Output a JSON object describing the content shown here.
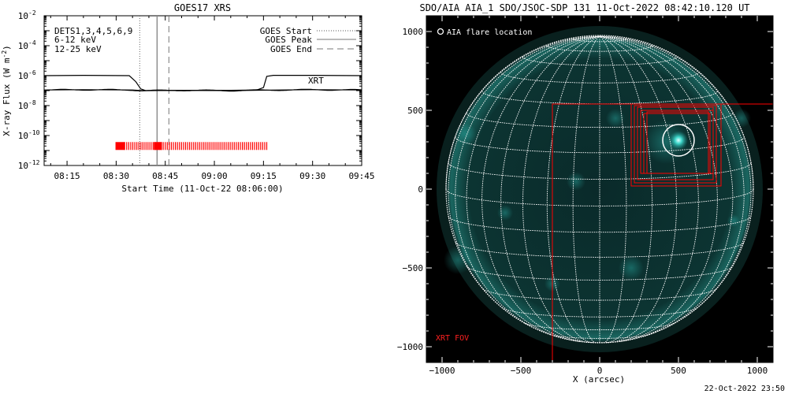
{
  "chart_data": [
    {
      "type": "line",
      "title": "GOES17 XRS",
      "xlabel": "Start Time (11-Oct-22 08:06:00)",
      "ylabel": "X-ray Flux (W m^-2)",
      "ylabel_parts": {
        "main": "X-ray Flux (W m",
        "sup": "-2",
        "end": ")"
      },
      "y_scale": "log",
      "ylim": [
        1e-12,
        0.01
      ],
      "ytick_exponents": [
        -12,
        -10,
        -8,
        -6,
        -4,
        -2
      ],
      "ytick_base": "10",
      "xlim_minutes": [
        488,
        585
      ],
      "x_ticks": [
        {
          "m": 495,
          "label": "08:15"
        },
        {
          "m": 510,
          "label": "08:30"
        },
        {
          "m": 525,
          "label": "08:45"
        },
        {
          "m": 540,
          "label": "09:00"
        },
        {
          "m": 555,
          "label": "09:15"
        },
        {
          "m": 570,
          "label": "09:30"
        },
        {
          "m": 585,
          "label": "09:45"
        }
      ],
      "instrument_labels": [
        {
          "text": "DETS1,3,4,5,6,9",
          "color": "#000000"
        },
        {
          "text": "6-12 keV",
          "color": "#cc33cc"
        },
        {
          "text": "12-25 keV",
          "color": "#33cc33"
        }
      ],
      "legend": [
        {
          "label": "GOES Start",
          "style": "dotted"
        },
        {
          "label": "GOES Peak",
          "style": "solid"
        },
        {
          "label": "GOES End",
          "style": "dashed"
        }
      ],
      "legend_position": "top-right",
      "event_lines_minutes": {
        "start": 517.2,
        "peak": 522.5,
        "end": 526.1
      },
      "series": [
        {
          "name": "",
          "color": "#000000",
          "points": [
            [
              488,
              1e-06
            ],
            [
              500,
              1.05e-06
            ],
            [
              514,
              1e-06
            ],
            [
              516,
              4e-07
            ],
            [
              517.5,
              1.3e-07
            ],
            [
              519,
              1e-07
            ],
            [
              530,
              1.05e-07
            ],
            [
              545,
              1.05e-07
            ],
            [
              553,
              1.1e-07
            ],
            [
              555,
              1.6e-07
            ],
            [
              556,
              9e-07
            ],
            [
              558,
              1.05e-06
            ],
            [
              570,
              1.05e-06
            ],
            [
              585,
              1e-06
            ]
          ]
        },
        {
          "name": "",
          "color": "#000000",
          "points": [
            [
              488,
              1.1e-07
            ],
            [
              500,
              1.15e-07
            ],
            [
              515,
              1.1e-07
            ],
            [
              518,
              1e-07
            ],
            [
              530,
              1.05e-07
            ],
            [
              545,
              1e-07
            ],
            [
              560,
              1.1e-07
            ],
            [
              570,
              1.15e-07
            ],
            [
              585,
              1.1e-07
            ]
          ]
        }
      ],
      "xrt_label": {
        "text": "XRT",
        "color": "#ff0000"
      },
      "xrt_bar": {
        "start": 509.8,
        "end": 556.5,
        "dense_end": 512.6,
        "y": 2e-11,
        "color": "#ff0000"
      }
    },
    {
      "type": "scatter",
      "title": "SDO/AIA AIA_1 SDO/JSOC-SDP 131 11-Oct-2022 08:42:10.120 UT",
      "xlabel": "X (arcsec)",
      "ylabel": "",
      "xlim": [
        -1100,
        1100
      ],
      "ylim": [
        -1100,
        1100
      ],
      "x_ticks": [
        -1000,
        -500,
        0,
        500,
        1000
      ],
      "y_ticks": [
        -1000,
        -500,
        0,
        500,
        1000
      ],
      "solar_radius_arcsec": 975,
      "flare_label": "AIA flare location",
      "flare_location": {
        "x": 500,
        "y": 310
      },
      "flare_circle_radius_arcsec": 100,
      "xrt_fov_label": "XRT FOV",
      "xrt_fov_color": "#ff0000",
      "fov_boxes": [
        {
          "x0": -300,
          "y0": -1100,
          "x1": 1100,
          "y1": 540
        },
        {
          "x0": 200,
          "y0": 20,
          "x1": 770,
          "y1": 540
        },
        {
          "x0": 220,
          "y0": 40,
          "x1": 740,
          "y1": 530
        },
        {
          "x0": 240,
          "y0": 60,
          "x1": 720,
          "y1": 520
        },
        {
          "x0": 260,
          "y0": 100,
          "x1": 720,
          "y1": 500
        },
        {
          "x0": 280,
          "y0": 100,
          "x1": 700,
          "y1": 480
        },
        {
          "x0": 300,
          "y0": 100,
          "x1": 690,
          "y1": 490
        }
      ],
      "background_color": "#000000",
      "grid_color": "#ffffff",
      "emission_color": "#22c8c0"
    }
  ],
  "timestamp": "22-Oct-2022 23:50"
}
